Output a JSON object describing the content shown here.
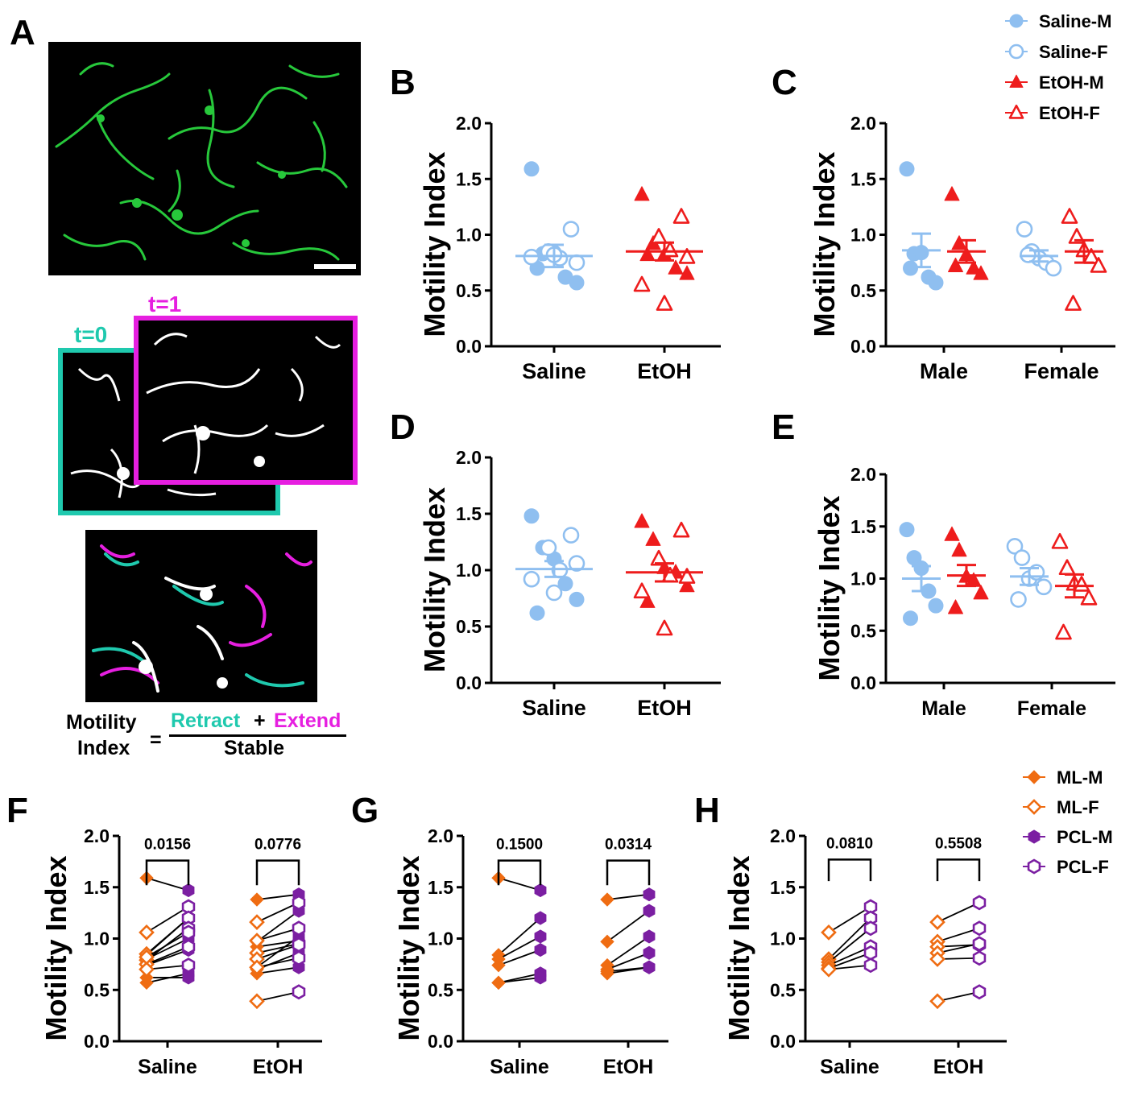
{
  "panel_letters": [
    "A",
    "B",
    "C",
    "D",
    "E",
    "F",
    "G",
    "H"
  ],
  "panel_a": {
    "t0": "t=0",
    "t1": "t=1",
    "formula": {
      "lhs_line1": "Motility",
      "lhs_line2": "Index",
      "equals": "=",
      "retract": "Retract",
      "plus": "+",
      "extend": "Extend",
      "denominator": "Stable"
    }
  },
  "colors": {
    "saline": "#8fbff0",
    "etoh": "#ee1c1c",
    "ml": "#ef6c12",
    "pcl": "#7b1fa2",
    "teal": "#1fc9ae",
    "magenta": "#e61fe0",
    "green": "#27c83b"
  },
  "legend_top": [
    {
      "label": "Saline-M",
      "color": "#8fbff0",
      "marker": "circle",
      "filled": true
    },
    {
      "label": "Saline-F",
      "color": "#8fbff0",
      "marker": "circle",
      "filled": false
    },
    {
      "label": "EtOH-M",
      "color": "#ee1c1c",
      "marker": "triangle",
      "filled": true
    },
    {
      "label": "EtOH-F",
      "color": "#ee1c1c",
      "marker": "triangle",
      "filled": false
    }
  ],
  "legend_bottom": [
    {
      "label": "ML-M",
      "color": "#ef6c12",
      "marker": "diamond",
      "filled": true
    },
    {
      "label": "ML-F",
      "color": "#ef6c12",
      "marker": "diamond",
      "filled": false
    },
    {
      "label": "PCL-M",
      "color": "#7b1fa2",
      "marker": "hexagon",
      "filled": true
    },
    {
      "label": "PCL-F",
      "color": "#7b1fa2",
      "marker": "hexagon",
      "filled": false
    }
  ],
  "chart_data": [
    {
      "panel": "B",
      "type": "scatter",
      "ylabel": "Motility Index",
      "ylim": [
        0,
        2
      ],
      "yticks": [
        "0.0",
        "0.5",
        "1.0",
        "1.5",
        "2.0"
      ],
      "categories": [
        "Saline",
        "EtOH"
      ],
      "groups": [
        {
          "category": "Saline",
          "color": "#8fbff0",
          "marker": "circle",
          "mean": 0.81,
          "sem": 0.1,
          "filled": [
            1.59,
            0.83,
            0.84,
            0.62,
            0.57,
            0.7
          ],
          "open": [
            1.05,
            0.85,
            0.79,
            0.75,
            0.8,
            0.82
          ]
        },
        {
          "category": "EtOH",
          "color": "#ee1c1c",
          "marker": "triangle",
          "mean": 0.85,
          "sem": 0.08,
          "filled": [
            1.36,
            0.92,
            0.82,
            0.7,
            0.65,
            0.82
          ],
          "open": [
            1.16,
            0.98,
            0.86,
            0.8,
            0.55,
            0.38
          ]
        }
      ]
    },
    {
      "panel": "C",
      "type": "scatter",
      "ylabel": "Motility Index",
      "ylim": [
        0,
        2
      ],
      "yticks": [
        "0.0",
        "0.5",
        "1.0",
        "1.5",
        "2.0"
      ],
      "categories": [
        "Male",
        "Female"
      ],
      "groups": [
        {
          "category": "Male",
          "color": "#8fbff0",
          "marker": "circle",
          "mean": 0.86,
          "sem": 0.15,
          "filled": [
            1.59,
            0.83,
            0.84,
            0.62,
            0.57,
            0.7
          ],
          "open": []
        },
        {
          "category": "Male",
          "color": "#ee1c1c",
          "marker": "triangle",
          "mean": 0.85,
          "sem": 0.1,
          "filled": [
            1.36,
            0.92,
            0.82,
            0.7,
            0.65,
            0.72
          ],
          "open": []
        },
        {
          "category": "Female",
          "color": "#8fbff0",
          "marker": "circle",
          "mean": 0.81,
          "sem": 0.05,
          "filled": [],
          "open": [
            1.05,
            0.85,
            0.79,
            0.75,
            0.7,
            0.82
          ]
        },
        {
          "category": "Female",
          "color": "#ee1c1c",
          "marker": "triangle",
          "mean": 0.85,
          "sem": 0.1,
          "filled": [],
          "open": [
            1.16,
            0.98,
            0.86,
            0.8,
            0.72,
            0.38
          ]
        }
      ]
    },
    {
      "panel": "D",
      "type": "scatter",
      "ylabel": "Motility Index",
      "ylim": [
        0,
        2
      ],
      "yticks": [
        "0.0",
        "0.5",
        "1.0",
        "1.5",
        "2.0"
      ],
      "categories": [
        "Saline",
        "EtOH"
      ],
      "groups": [
        {
          "category": "Saline",
          "color": "#8fbff0",
          "marker": "circle",
          "mean": 1.01,
          "sem": 0.07,
          "filled": [
            1.48,
            1.2,
            1.1,
            0.88,
            0.74,
            0.62
          ],
          "open": [
            1.31,
            1.2,
            1.0,
            1.06,
            0.92,
            0.8
          ]
        },
        {
          "category": "EtOH",
          "color": "#ee1c1c",
          "marker": "triangle",
          "mean": 0.98,
          "sem": 0.08,
          "filled": [
            1.43,
            1.27,
            1.02,
            0.98,
            0.86,
            0.72
          ],
          "open": [
            1.35,
            1.1,
            0.95,
            0.94,
            0.81,
            0.48
          ]
        }
      ]
    },
    {
      "panel": "E",
      "type": "scatter",
      "ylabel": "Motility Index",
      "ylim": [
        0,
        2
      ],
      "yticks": [
        "0.0",
        "0.5",
        "1.0",
        "1.5",
        "2.0"
      ],
      "categories": [
        "Male",
        "Female"
      ],
      "groups": [
        {
          "category": "Male",
          "color": "#8fbff0",
          "marker": "circle",
          "mean": 1.0,
          "sem": 0.12,
          "filled": [
            1.47,
            1.2,
            1.1,
            0.88,
            0.74,
            0.62
          ],
          "open": []
        },
        {
          "category": "Male",
          "color": "#ee1c1c",
          "marker": "triangle",
          "mean": 1.03,
          "sem": 0.1,
          "filled": [
            1.42,
            1.27,
            1.02,
            0.98,
            0.86,
            0.72
          ],
          "open": []
        },
        {
          "category": "Female",
          "color": "#8fbff0",
          "marker": "circle",
          "mean": 1.02,
          "sem": 0.08,
          "filled": [],
          "open": [
            1.31,
            1.2,
            1.0,
            1.06,
            0.92,
            0.8
          ]
        },
        {
          "category": "Female",
          "color": "#ee1c1c",
          "marker": "triangle",
          "mean": 0.93,
          "sem": 0.11,
          "filled": [],
          "open": [
            1.35,
            1.1,
            0.95,
            0.94,
            0.81,
            0.48
          ]
        }
      ]
    },
    {
      "panel": "F",
      "type": "paired",
      "ylabel": "Motility Index",
      "ylim": [
        0,
        2
      ],
      "yticks": [
        "0.0",
        "0.5",
        "1.0",
        "1.5",
        "2.0"
      ],
      "categories": [
        "Saline",
        "EtOH"
      ],
      "p_values": [
        "0.0156",
        "0.0776"
      ],
      "pairs": [
        {
          "category": "Saline",
          "sex": "M",
          "ml": 1.59,
          "pcl": 1.47
        },
        {
          "category": "Saline",
          "sex": "M",
          "ml": 0.84,
          "pcl": 1.2
        },
        {
          "category": "Saline",
          "sex": "M",
          "ml": 0.8,
          "pcl": 1.0
        },
        {
          "category": "Saline",
          "sex": "M",
          "ml": 0.74,
          "pcl": 0.89
        },
        {
          "category": "Saline",
          "sex": "M",
          "ml": 0.57,
          "pcl": 0.66
        },
        {
          "category": "Saline",
          "sex": "M",
          "ml": 0.62,
          "pcl": 0.62
        },
        {
          "category": "Saline",
          "sex": "F",
          "ml": 1.06,
          "pcl": 1.31
        },
        {
          "category": "Saline",
          "sex": "F",
          "ml": 0.85,
          "pcl": 1.2
        },
        {
          "category": "Saline",
          "sex": "F",
          "ml": 0.79,
          "pcl": 1.1
        },
        {
          "category": "Saline",
          "sex": "F",
          "ml": 0.75,
          "pcl": 0.92
        },
        {
          "category": "Saline",
          "sex": "F",
          "ml": 0.7,
          "pcl": 0.74
        },
        {
          "category": "Saline",
          "sex": "F",
          "ml": 0.82,
          "pcl": 1.06
        },
        {
          "category": "EtOH",
          "sex": "M",
          "ml": 1.38,
          "pcl": 1.43
        },
        {
          "category": "EtOH",
          "sex": "M",
          "ml": 0.97,
          "pcl": 1.27
        },
        {
          "category": "EtOH",
          "sex": "M",
          "ml": 0.72,
          "pcl": 1.02
        },
        {
          "category": "EtOH",
          "sex": "M",
          "ml": 0.7,
          "pcl": 0.86
        },
        {
          "category": "EtOH",
          "sex": "M",
          "ml": 0.66,
          "pcl": 0.72
        },
        {
          "category": "EtOH",
          "sex": "M",
          "ml": 0.92,
          "pcl": 0.98
        },
        {
          "category": "EtOH",
          "sex": "F",
          "ml": 1.16,
          "pcl": 1.35
        },
        {
          "category": "EtOH",
          "sex": "F",
          "ml": 0.98,
          "pcl": 1.1
        },
        {
          "category": "EtOH",
          "sex": "F",
          "ml": 0.86,
          "pcl": 0.95
        },
        {
          "category": "EtOH",
          "sex": "F",
          "ml": 0.8,
          "pcl": 0.94
        },
        {
          "category": "EtOH",
          "sex": "F",
          "ml": 0.72,
          "pcl": 0.81
        },
        {
          "category": "EtOH",
          "sex": "F",
          "ml": 0.39,
          "pcl": 0.48
        }
      ]
    },
    {
      "panel": "G",
      "type": "paired",
      "ylabel": "Motility Index",
      "ylim": [
        0,
        2
      ],
      "yticks": [
        "0.0",
        "0.5",
        "1.0",
        "1.5",
        "2.0"
      ],
      "categories": [
        "Saline",
        "EtOH"
      ],
      "p_values": [
        "0.1500",
        "0.0314"
      ],
      "pairs": [
        {
          "category": "Saline",
          "sex": "M",
          "ml": 1.59,
          "pcl": 1.47
        },
        {
          "category": "Saline",
          "sex": "M",
          "ml": 0.84,
          "pcl": 1.2
        },
        {
          "category": "Saline",
          "sex": "M",
          "ml": 0.8,
          "pcl": 1.02
        },
        {
          "category": "Saline",
          "sex": "M",
          "ml": 0.74,
          "pcl": 0.89
        },
        {
          "category": "Saline",
          "sex": "M",
          "ml": 0.57,
          "pcl": 0.66
        },
        {
          "category": "Saline",
          "sex": "M",
          "ml": 0.57,
          "pcl": 0.62
        },
        {
          "category": "EtOH",
          "sex": "M",
          "ml": 1.38,
          "pcl": 1.43
        },
        {
          "category": "EtOH",
          "sex": "M",
          "ml": 0.97,
          "pcl": 1.27
        },
        {
          "category": "EtOH",
          "sex": "M",
          "ml": 0.74,
          "pcl": 1.02
        },
        {
          "category": "EtOH",
          "sex": "M",
          "ml": 0.7,
          "pcl": 0.86
        },
        {
          "category": "EtOH",
          "sex": "M",
          "ml": 0.68,
          "pcl": 0.72
        },
        {
          "category": "EtOH",
          "sex": "M",
          "ml": 0.66,
          "pcl": 0.72
        }
      ]
    },
    {
      "panel": "H",
      "type": "paired",
      "ylabel": "Motility Index",
      "ylim": [
        0,
        2
      ],
      "yticks": [
        "0.0",
        "0.5",
        "1.0",
        "1.5",
        "2.0"
      ],
      "categories": [
        "Saline",
        "EtOH"
      ],
      "p_values": [
        "0.0810",
        "0.5508"
      ],
      "pairs": [
        {
          "category": "Saline",
          "sex": "F",
          "ml": 1.06,
          "pcl": 1.31
        },
        {
          "category": "Saline",
          "sex": "F",
          "ml": 0.8,
          "pcl": 1.2
        },
        {
          "category": "Saline",
          "sex": "F",
          "ml": 0.77,
          "pcl": 1.1
        },
        {
          "category": "Saline",
          "sex": "F",
          "ml": 0.74,
          "pcl": 0.92
        },
        {
          "category": "Saline",
          "sex": "F",
          "ml": 0.71,
          "pcl": 0.86
        },
        {
          "category": "Saline",
          "sex": "F",
          "ml": 0.7,
          "pcl": 0.74
        },
        {
          "category": "EtOH",
          "sex": "F",
          "ml": 1.16,
          "pcl": 1.35
        },
        {
          "category": "EtOH",
          "sex": "F",
          "ml": 0.97,
          "pcl": 1.1
        },
        {
          "category": "EtOH",
          "sex": "F",
          "ml": 0.92,
          "pcl": 0.94
        },
        {
          "category": "EtOH",
          "sex": "F",
          "ml": 0.86,
          "pcl": 0.95
        },
        {
          "category": "EtOH",
          "sex": "F",
          "ml": 0.8,
          "pcl": 0.81
        },
        {
          "category": "EtOH",
          "sex": "F",
          "ml": 0.39,
          "pcl": 0.48
        }
      ]
    }
  ]
}
